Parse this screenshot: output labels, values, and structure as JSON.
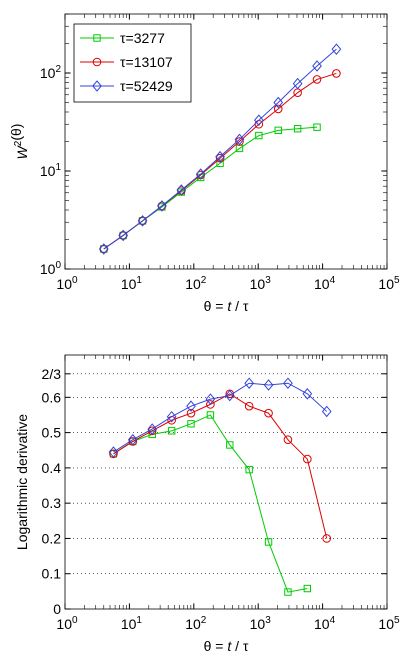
{
  "chart_data": [
    {
      "type": "line",
      "xscale": "log",
      "yscale": "log",
      "xlim": [
        1,
        100000
      ],
      "ylim": [
        1,
        400
      ],
      "grid": false,
      "legend_position": "top-left",
      "xlabel": "θ = t / τ",
      "ylabel": "W²(θ)",
      "x_ticks": [
        1,
        10,
        100,
        1000,
        10000,
        100000
      ],
      "x_tick_labels": [
        {
          "base": "10",
          "exp": "0"
        },
        {
          "base": "10",
          "exp": "1"
        },
        {
          "base": "10",
          "exp": "2"
        },
        {
          "base": "10",
          "exp": "3"
        },
        {
          "base": "10",
          "exp": "4"
        },
        {
          "base": "10",
          "exp": "5"
        }
      ],
      "y_ticks": [
        1,
        10,
        100
      ],
      "y_tick_labels": [
        {
          "base": "10",
          "exp": "0"
        },
        {
          "base": "10",
          "exp": "1"
        },
        {
          "base": "10",
          "exp": "2"
        }
      ],
      "series": [
        {
          "name": "τ=3277",
          "color": "#00cc00",
          "marker": "square",
          "x": [
            4,
            8,
            16,
            32,
            64,
            128,
            256,
            512,
            1024,
            2048,
            4096,
            8192
          ],
          "y": [
            1.6,
            2.2,
            3.1,
            4.3,
            6.1,
            8.6,
            12,
            17,
            23,
            26,
            27,
            28
          ]
        },
        {
          "name": "τ=13107",
          "color": "#dd0000",
          "marker": "circle",
          "x": [
            4,
            8,
            16,
            32,
            64,
            128,
            256,
            512,
            1024,
            2048,
            4096,
            8192,
            16384
          ],
          "y": [
            1.6,
            2.2,
            3.1,
            4.4,
            6.3,
            9.1,
            13.5,
            20,
            30,
            43,
            63,
            86,
            99
          ]
        },
        {
          "name": "τ=52429",
          "color": "#3344dd",
          "marker": "diamond",
          "x": [
            4,
            8,
            16,
            32,
            64,
            128,
            256,
            512,
            1024,
            2048,
            4096,
            8192,
            16384
          ],
          "y": [
            1.6,
            2.2,
            3.1,
            4.4,
            6.4,
            9.3,
            14,
            21,
            33,
            50,
            78,
            118,
            175
          ]
        }
      ]
    },
    {
      "type": "line",
      "xscale": "log",
      "yscale": "linear",
      "xlim": [
        1,
        100000
      ],
      "ylim": [
        0,
        0.72
      ],
      "grid": true,
      "grid_style": "dotted horizontal",
      "xlabel": "θ = t / τ",
      "ylabel": "Logarithmic derivative",
      "x_ticks": [
        1,
        10,
        100,
        1000,
        10000,
        100000
      ],
      "x_tick_labels": [
        {
          "base": "10",
          "exp": "0"
        },
        {
          "base": "10",
          "exp": "1"
        },
        {
          "base": "10",
          "exp": "2"
        },
        {
          "base": "10",
          "exp": "3"
        },
        {
          "base": "10",
          "exp": "4"
        },
        {
          "base": "10",
          "exp": "5"
        }
      ],
      "y_ticks": [
        0,
        0.1,
        0.2,
        0.3,
        0.4,
        0.5,
        0.6,
        0.6667
      ],
      "y_tick_labels": [
        "0",
        "0.1",
        "0.2",
        "0.3",
        "0.4",
        "0.5",
        "0.6",
        "2/3"
      ],
      "series": [
        {
          "name": "τ=3277",
          "color": "#00cc00",
          "marker": "square",
          "x": [
            5.66,
            11.3,
            22.6,
            45.3,
            90.5,
            181,
            362,
            724,
            1448,
            2896,
            5793
          ],
          "y": [
            0.44,
            0.475,
            0.495,
            0.505,
            0.525,
            0.55,
            0.465,
            0.395,
            0.19,
            0.048,
            0.058
          ]
        },
        {
          "name": "τ=13107",
          "color": "#dd0000",
          "marker": "circle",
          "x": [
            5.66,
            11.3,
            22.6,
            45.3,
            90.5,
            181,
            362,
            724,
            1448,
            2896,
            5793,
            11585
          ],
          "y": [
            0.44,
            0.475,
            0.505,
            0.535,
            0.555,
            0.58,
            0.61,
            0.575,
            0.555,
            0.48,
            0.425,
            0.2
          ]
        },
        {
          "name": "τ=52429",
          "color": "#3344dd",
          "marker": "diamond",
          "x": [
            5.66,
            11.3,
            22.6,
            45.3,
            90.5,
            181,
            362,
            724,
            1448,
            2896,
            5793,
            11585
          ],
          "y": [
            0.445,
            0.48,
            0.51,
            0.545,
            0.575,
            0.595,
            0.605,
            0.64,
            0.635,
            0.64,
            0.61,
            0.56
          ]
        }
      ]
    }
  ]
}
